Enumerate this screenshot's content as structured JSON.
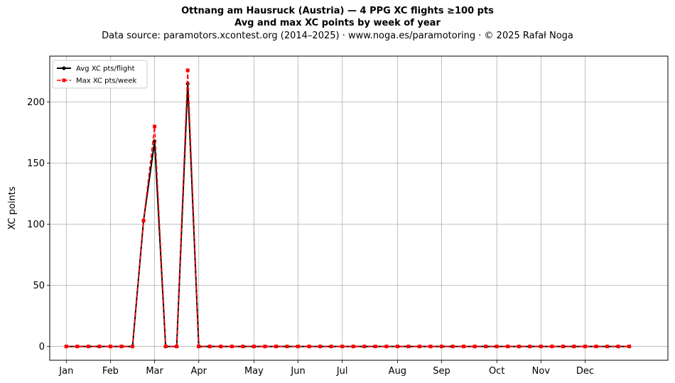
{
  "title_line1": "Ottnang am Hausruck (Austria)  —  4 PPG XC flights ≥100 pts",
  "title_line2": "Avg and max XC points by week of year",
  "subtitle": "Data source: paramotors.xcontest.org (2014–2025)  ·  www.noga.es/paramotoring  ·  © 2025 Rafał Noga",
  "chart_data": {
    "type": "line",
    "title": "Avg and max XC points by week of year",
    "xlabel": "",
    "ylabel": "XC points",
    "xlim": [
      -1.5,
      54.5
    ],
    "ylim": [
      -11.3,
      237.6
    ],
    "yticks": [
      0,
      50,
      100,
      150,
      200
    ],
    "month_ticks": [
      {
        "label": "Jan",
        "week": 0
      },
      {
        "label": "Feb",
        "week": 4
      },
      {
        "label": "Mar",
        "week": 8
      },
      {
        "label": "Apr",
        "week": 12
      },
      {
        "label": "May",
        "week": 17
      },
      {
        "label": "Jun",
        "week": 21
      },
      {
        "label": "Jul",
        "week": 25
      },
      {
        "label": "Aug",
        "week": 30
      },
      {
        "label": "Sep",
        "week": 34
      },
      {
        "label": "Oct",
        "week": 39
      },
      {
        "label": "Nov",
        "week": 43
      },
      {
        "label": "Dec",
        "week": 47
      }
    ],
    "grid": true,
    "legend_position": "top-left",
    "series": [
      {
        "name": "Avg XC pts/flight",
        "color": "#000000",
        "style": "solid",
        "marker": "circle",
        "values": [
          0,
          0,
          0,
          0,
          0,
          0,
          0,
          103,
          168,
          0,
          0,
          215,
          0,
          0,
          0,
          0,
          0,
          0,
          0,
          0,
          0,
          0,
          0,
          0,
          0,
          0,
          0,
          0,
          0,
          0,
          0,
          0,
          0,
          0,
          0,
          0,
          0,
          0,
          0,
          0,
          0,
          0,
          0,
          0,
          0,
          0,
          0,
          0,
          0,
          0,
          0,
          0
        ]
      },
      {
        "name": "Max XC pts/week",
        "color": "#ff0000",
        "style": "dashed",
        "marker": "square",
        "values": [
          0,
          0,
          0,
          0,
          0,
          0,
          0,
          103,
          180,
          0,
          0,
          226,
          0,
          0,
          0,
          0,
          0,
          0,
          0,
          0,
          0,
          0,
          0,
          0,
          0,
          0,
          0,
          0,
          0,
          0,
          0,
          0,
          0,
          0,
          0,
          0,
          0,
          0,
          0,
          0,
          0,
          0,
          0,
          0,
          0,
          0,
          0,
          0,
          0,
          0,
          0,
          0
        ]
      }
    ]
  }
}
